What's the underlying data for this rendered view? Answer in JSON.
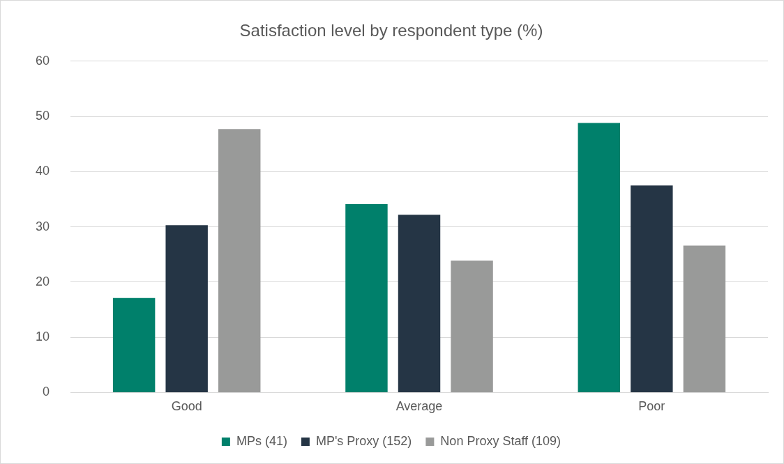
{
  "chart_data": {
    "type": "bar",
    "title": "Satisfaction level by respondent type (%)",
    "categories": [
      "Good",
      "Average",
      "Poor"
    ],
    "series": [
      {
        "name": "MPs (41)",
        "color": "#00806b",
        "values": [
          17.1,
          34.1,
          48.8
        ]
      },
      {
        "name": "MP's Proxy (152)",
        "color": "#253545",
        "values": [
          30.3,
          32.2,
          37.5
        ]
      },
      {
        "name": "Non Proxy Staff (109)",
        "color": "#999a99",
        "values": [
          47.7,
          23.9,
          26.6
        ]
      }
    ],
    "ylim": [
      0,
      60
    ],
    "yticks": [
      0,
      10,
      20,
      30,
      40,
      50,
      60
    ],
    "grid": "y",
    "legend": "bottom"
  }
}
